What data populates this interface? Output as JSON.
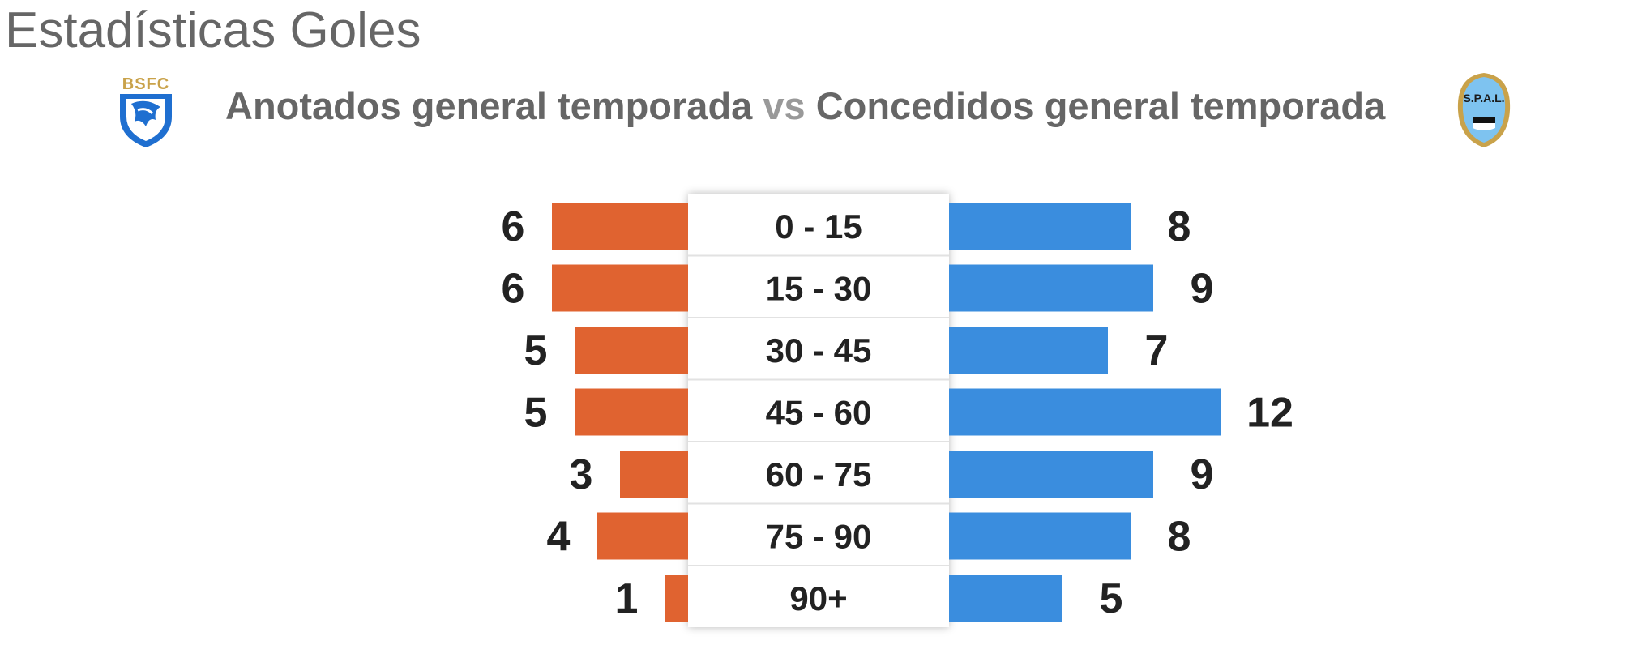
{
  "header": {
    "title": "Estadísticas Goles",
    "subtitle_left": "Anotados general temporada",
    "subtitle_vs": "vs",
    "subtitle_right": "Concedidos general temporada"
  },
  "teams": {
    "left": {
      "logo_text": "BSFC",
      "logo_icon": "brescia-lion-shield-icon"
    },
    "right": {
      "logo_text": "S.P.A.L.",
      "logo_icon": "spal-shield-icon"
    }
  },
  "colors": {
    "left_bar": "#E06330",
    "right_bar": "#3A8DDE",
    "value_text": "#222222",
    "label_text": "#222222"
  },
  "chart_data": {
    "type": "bar",
    "orientation": "diverging-horizontal",
    "categories": [
      "0 - 15",
      "15 - 30",
      "30 - 45",
      "45 - 60",
      "60 - 75",
      "75 - 90",
      "90+"
    ],
    "series": [
      {
        "name": "Anotados general temporada",
        "side": "left",
        "values": [
          6,
          6,
          5,
          5,
          3,
          4,
          1
        ]
      },
      {
        "name": "Concedidos general temporada",
        "side": "right",
        "values": [
          8,
          9,
          7,
          12,
          9,
          8,
          5
        ]
      }
    ]
  }
}
